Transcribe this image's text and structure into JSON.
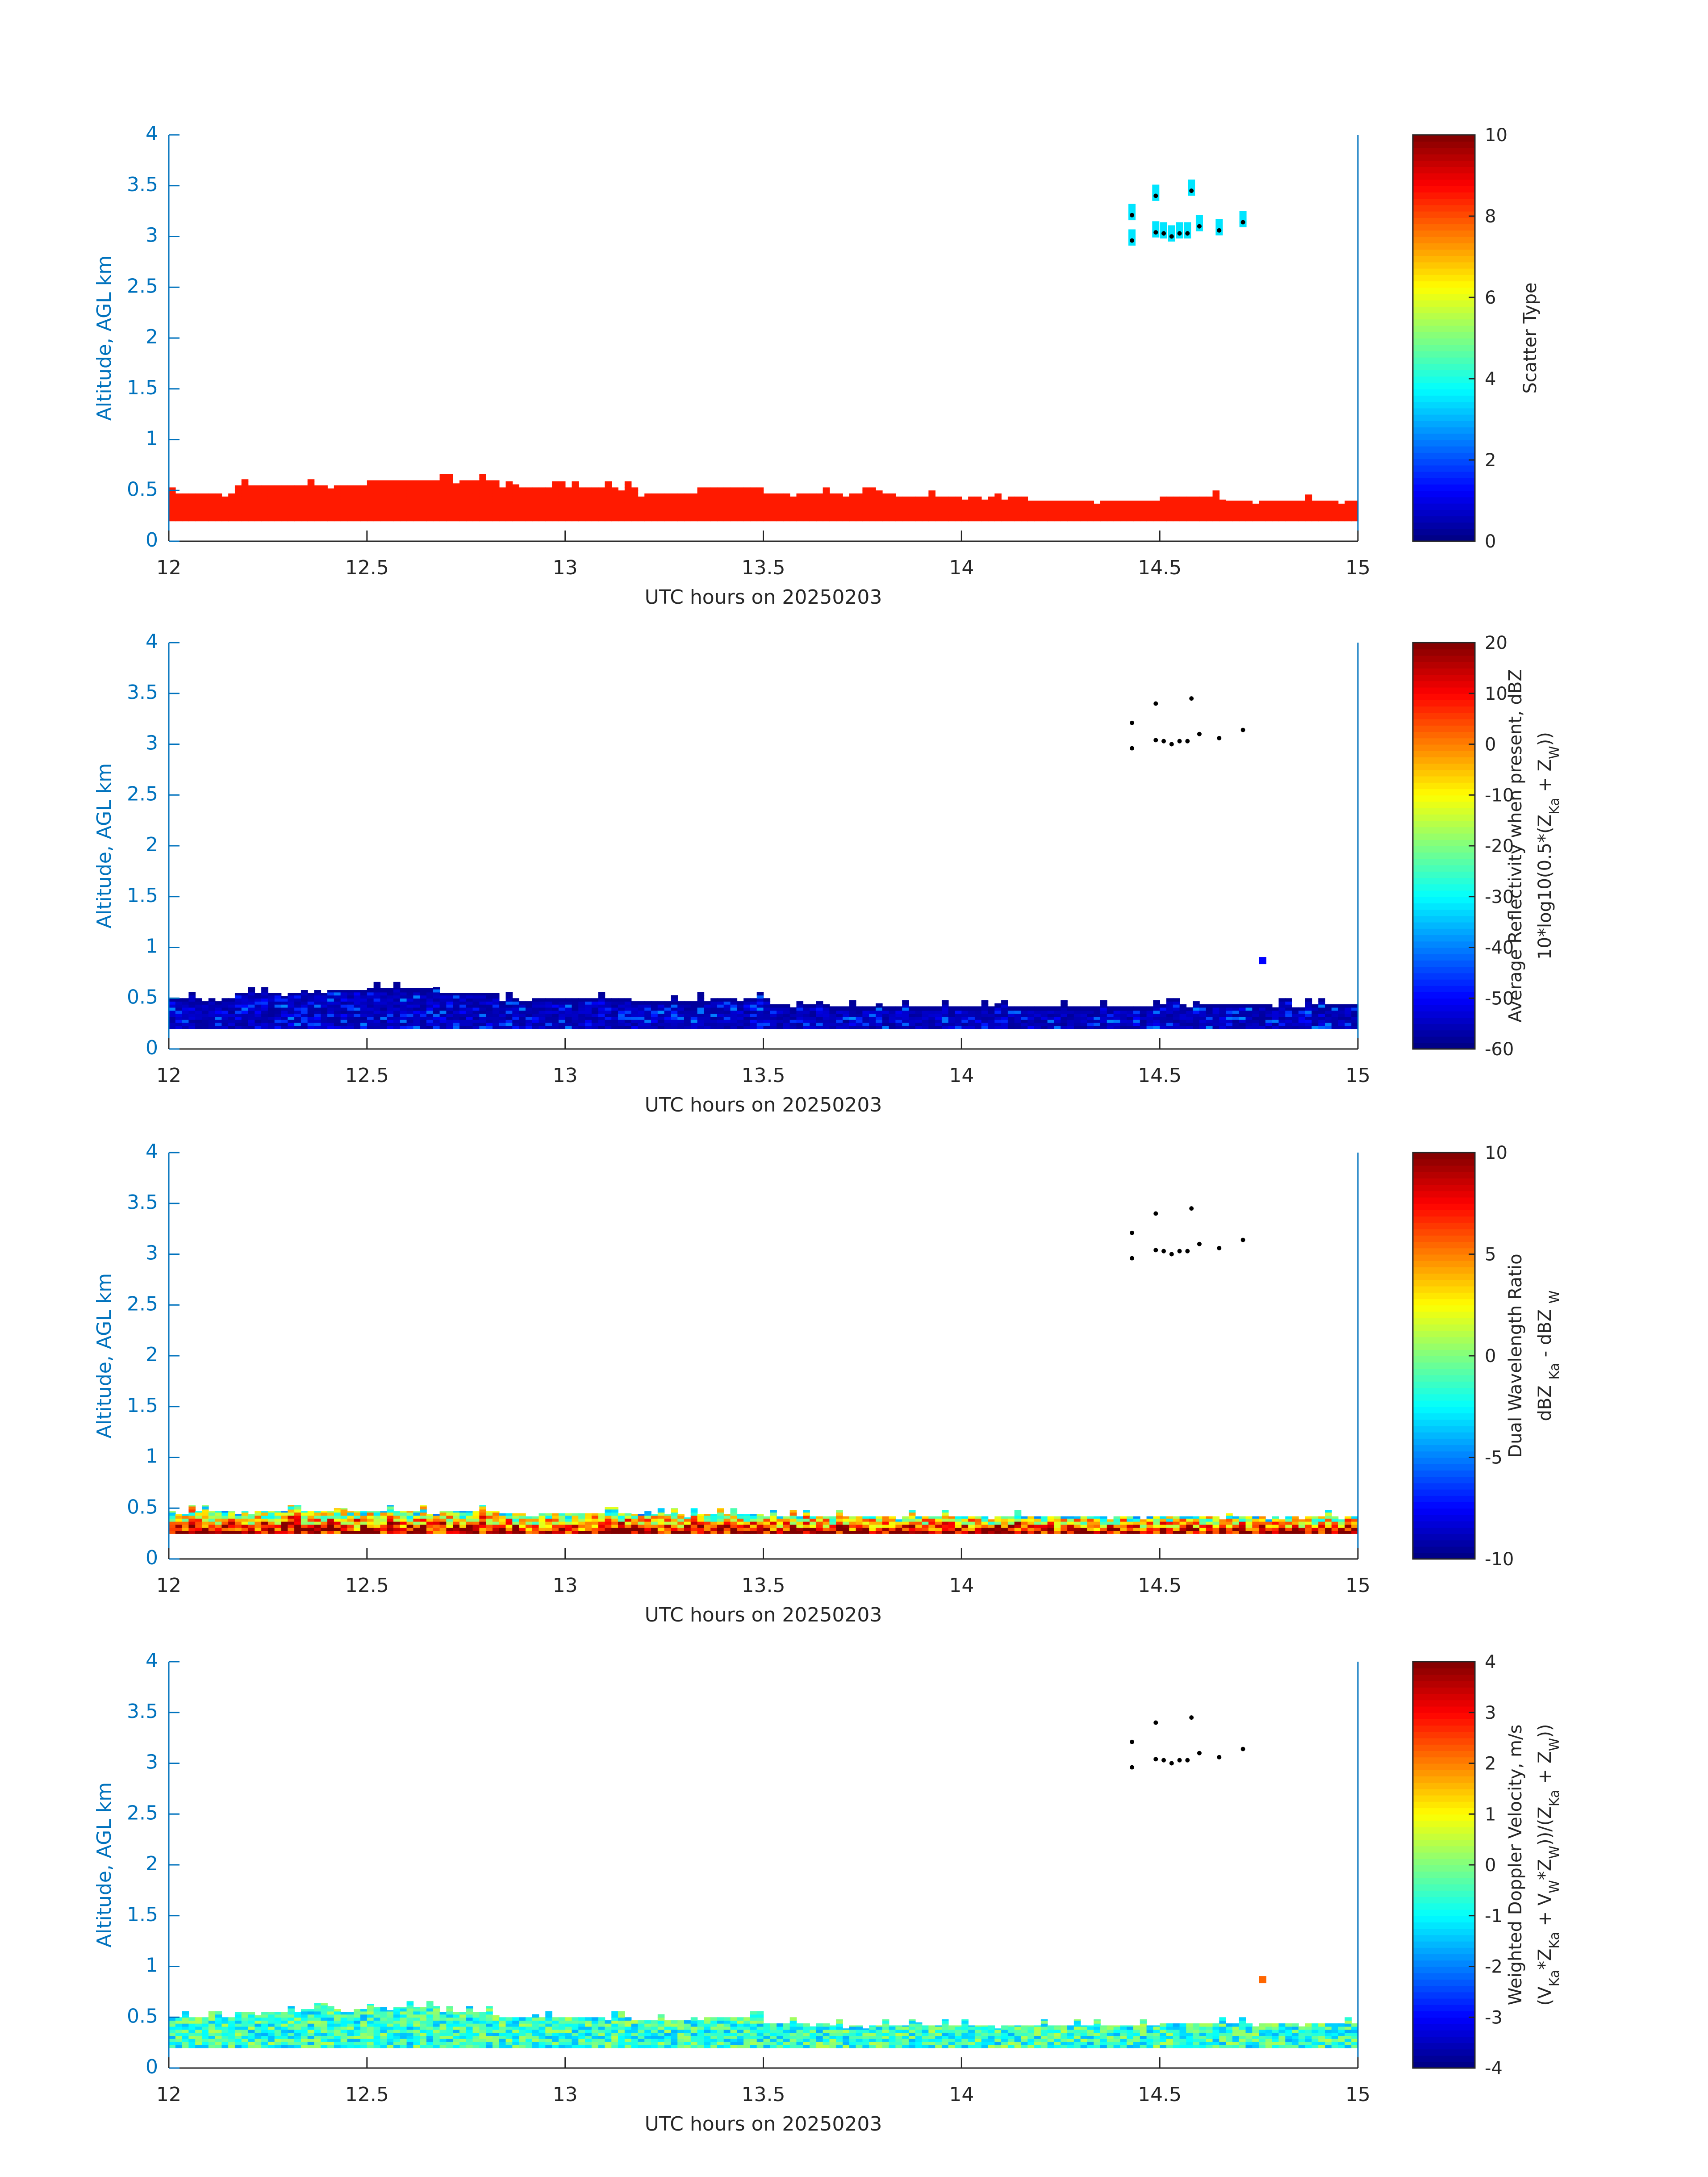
{
  "chart_data": [
    {
      "type": "heatmap",
      "xlabel": "UTC hours on 20250203",
      "ylabel": "Altitude, AGL km",
      "xlim": [
        12,
        15
      ],
      "ylim": [
        0,
        4
      ],
      "xticks": [
        "12",
        "12.5",
        "13",
        "13.5",
        "14",
        "14.5",
        "15"
      ],
      "yticks": [
        "0",
        "0.5",
        "1",
        "1.5",
        "2",
        "2.5",
        "3",
        "3.5",
        "4"
      ],
      "colorbar": {
        "label_lines": [
          [
            {
              "t": "Scatter Type"
            }
          ]
        ],
        "clim": [
          0,
          10
        ],
        "ticks": [
          "0",
          "2",
          "4",
          "6",
          "8",
          "10"
        ]
      },
      "layer": {
        "base_km": 0.2,
        "value": 8.5,
        "value_spread": 0
      },
      "aloft_cells": {
        "value": 3.5
      },
      "layer_top_km_every_10min": [
        0.47,
        0.55,
        0.55,
        0.6,
        0.6,
        0.53,
        0.53,
        0.47,
        0.53,
        0.47,
        0.47,
        0.44,
        0.44,
        0.4,
        0.4,
        0.44,
        0.4,
        0.4
      ]
    },
    {
      "type": "heatmap",
      "xlabel": "UTC hours on 20250203",
      "ylabel": "Altitude, AGL km",
      "xlim": [
        12,
        15
      ],
      "ylim": [
        0,
        4
      ],
      "xticks": [
        "12",
        "12.5",
        "13",
        "13.5",
        "14",
        "14.5",
        "15"
      ],
      "yticks": [
        "0",
        "0.5",
        "1",
        "1.5",
        "2",
        "2.5",
        "3",
        "3.5",
        "4"
      ],
      "colorbar": {
        "label_lines": [
          [
            {
              "t": "Average Reflectivity when present, dBZ"
            }
          ],
          [
            {
              "t": "10*log10(0.5*(Z"
            },
            {
              "t": "Ka",
              "sub": true
            },
            {
              "t": " + Z"
            },
            {
              "t": "W",
              "sub": true
            },
            {
              "t": "))"
            }
          ]
        ],
        "clim": [
          -60,
          20
        ],
        "ticks": [
          "-60",
          "-50",
          "-40",
          "-30",
          "-20",
          "-10",
          "0",
          "10",
          "20"
        ]
      },
      "layer": {
        "base_km": 0.2,
        "value": -53,
        "value_spread": 14
      },
      "isolated_cell": {
        "x": 14.76,
        "y": 0.87,
        "value": -50
      },
      "layer_top_km_every_10min": [
        0.5,
        0.55,
        0.58,
        0.6,
        0.55,
        0.5,
        0.5,
        0.47,
        0.5,
        0.44,
        0.42,
        0.42,
        0.42,
        0.42,
        0.42,
        0.44,
        0.44,
        0.44
      ]
    },
    {
      "type": "heatmap",
      "xlabel": "UTC hours on 20250203",
      "ylabel": "Altitude, AGL km",
      "xlim": [
        12,
        15
      ],
      "ylim": [
        0,
        4
      ],
      "xticks": [
        "12",
        "12.5",
        "13",
        "13.5",
        "14",
        "14.5",
        "15"
      ],
      "yticks": [
        "0",
        "0.5",
        "1",
        "1.5",
        "2",
        "2.5",
        "3",
        "3.5",
        "4"
      ],
      "colorbar": {
        "label_lines": [
          [
            {
              "t": "Dual Wavelength Ratio"
            }
          ],
          [
            {
              "t": "dBZ "
            },
            {
              "t": "Ka",
              "sub": true
            },
            {
              "t": " - dBZ "
            },
            {
              "t": "W",
              "sub": true
            }
          ]
        ],
        "clim": [
          -10,
          10
        ],
        "ticks": [
          "-10",
          "-5",
          "0",
          "5",
          "10"
        ]
      },
      "layer": {
        "base_km": 0.25,
        "value": 5,
        "value_spread": 10
      },
      "layer_top_km_every_10min": [
        0.47,
        0.47,
        0.47,
        0.47,
        0.47,
        0.45,
        0.45,
        0.44,
        0.44,
        0.42,
        0.42,
        0.42,
        0.42,
        0.42,
        0.42,
        0.42,
        0.42,
        0.42
      ]
    },
    {
      "type": "heatmap",
      "xlabel": "UTC hours on 20250203",
      "ylabel": "Altitude, AGL km",
      "xlim": [
        12,
        15
      ],
      "ylim": [
        0,
        4
      ],
      "xticks": [
        "12",
        "12.5",
        "13",
        "13.5",
        "14",
        "14.5",
        "15"
      ],
      "yticks": [
        "0",
        "0.5",
        "1",
        "1.5",
        "2",
        "2.5",
        "3",
        "3.5",
        "4"
      ],
      "colorbar": {
        "label_lines": [
          [
            {
              "t": "Weighted Doppler Velocity, m/s"
            }
          ],
          [
            {
              "t": "(V"
            },
            {
              "t": "Ka",
              "sub": true
            },
            {
              "t": "*Z"
            },
            {
              "t": "Ka",
              "sub": true
            },
            {
              "t": " + V"
            },
            {
              "t": "W",
              "sub": true
            },
            {
              "t": "*Z"
            },
            {
              "t": "W",
              "sub": true
            },
            {
              "t": "))/(Z"
            },
            {
              "t": "Ka",
              "sub": true
            },
            {
              "t": " + Z"
            },
            {
              "t": "W",
              "sub": true
            },
            {
              "t": "))"
            }
          ]
        ],
        "clim": [
          -4,
          4
        ],
        "ticks": [
          "-4",
          "-3",
          "-2",
          "-1",
          "0",
          "1",
          "2",
          "3",
          "4"
        ]
      },
      "layer": {
        "base_km": 0.2,
        "value": -0.6,
        "value_spread": 1.4
      },
      "isolated_cell": {
        "x": 14.76,
        "y": 0.87,
        "value": 2.2
      },
      "layer_top_km_every_10min": [
        0.5,
        0.55,
        0.58,
        0.6,
        0.55,
        0.5,
        0.5,
        0.47,
        0.5,
        0.44,
        0.42,
        0.42,
        0.42,
        0.42,
        0.42,
        0.44,
        0.44,
        0.44
      ]
    }
  ],
  "overlay_points": {
    "x": [
      14.43,
      14.43,
      14.49,
      14.49,
      14.51,
      14.53,
      14.55,
      14.57,
      14.58,
      14.6,
      14.65,
      14.71
    ],
    "y": [
      3.21,
      2.96,
      3.4,
      3.04,
      3.03,
      3.0,
      3.03,
      3.03,
      3.45,
      3.1,
      3.06,
      3.14
    ]
  }
}
